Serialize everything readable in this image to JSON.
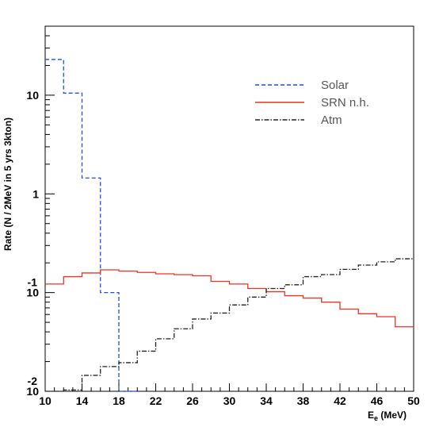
{
  "chart_data": {
    "type": "line",
    "plot_style": "step histogram",
    "title": "",
    "xlabel": "E",
    "xlabel_sub": "e",
    "xlabel_unit": " (MeV)",
    "ylabel": "Rate (N / 2MeV  in 5 yrs  3kton)",
    "xlim": [
      10,
      50
    ],
    "ylim": [
      0.01,
      50
    ],
    "yscale": "log",
    "grid": false,
    "legend_position": "top-right",
    "x_ticks": [
      10,
      14,
      18,
      22,
      26,
      30,
      34,
      38,
      42,
      46,
      50
    ],
    "y_ticks": [
      {
        "value": 0.01,
        "base": "10",
        "exp": "-2"
      },
      {
        "value": 0.1,
        "base": "10",
        "exp": "-1"
      },
      {
        "value": 1,
        "base": "1",
        "exp": ""
      },
      {
        "value": 10,
        "base": "10",
        "exp": ""
      }
    ],
    "bin_edges": [
      10,
      12,
      14,
      16,
      18,
      20,
      22,
      24,
      26,
      28,
      30,
      32,
      34,
      36,
      38,
      40,
      42,
      44,
      46,
      48,
      50
    ],
    "series": [
      {
        "name": "Solar",
        "color": "#1f4fd8",
        "dash": "5,3",
        "values": [
          23,
          10.5,
          1.45,
          0.1,
          0.01,
          null,
          null,
          null,
          null,
          null,
          null,
          null,
          null,
          null,
          null,
          null,
          null,
          null,
          null,
          null
        ]
      },
      {
        "name": "SRN n.h.",
        "color": "#ee3322",
        "dash": "",
        "values": [
          0.122,
          0.145,
          0.158,
          0.17,
          0.165,
          0.16,
          0.155,
          0.152,
          0.148,
          0.13,
          0.122,
          0.11,
          0.102,
          0.093,
          0.088,
          0.08,
          0.068,
          0.061,
          0.057,
          0.045
        ]
      },
      {
        "name": "Atm",
        "color": "#222222",
        "dash": "6,2,1.5,2",
        "values": [
          0.01,
          0.0103,
          0.0145,
          0.0178,
          0.0195,
          0.0255,
          0.034,
          0.043,
          0.054,
          0.062,
          0.075,
          0.09,
          0.11,
          0.12,
          0.145,
          0.152,
          0.172,
          0.19,
          0.205,
          0.22
        ]
      }
    ]
  }
}
